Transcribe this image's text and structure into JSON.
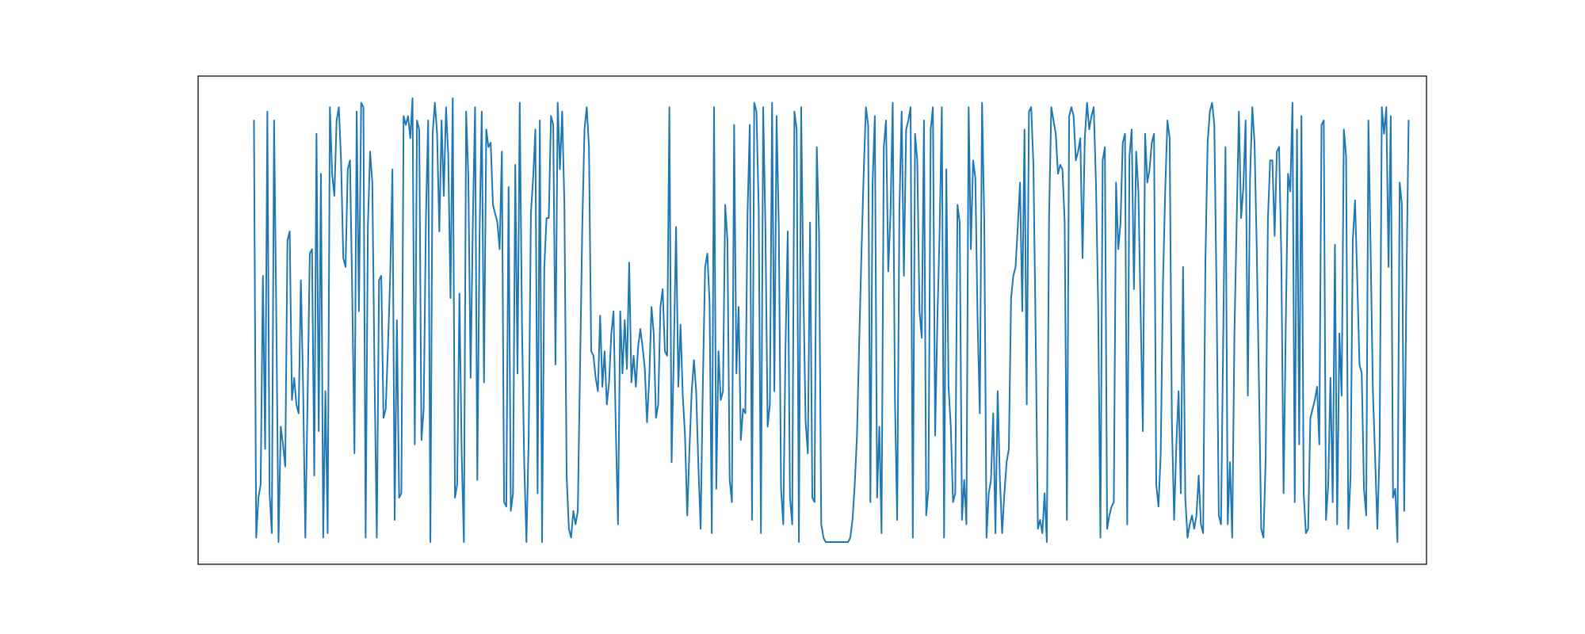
{
  "chart_data": {
    "type": "line",
    "title": "",
    "xlabel": "",
    "ylabel": "",
    "axes_visible": false,
    "grid": false,
    "legend": "none",
    "xlim": [
      -25,
      525
    ],
    "ylim": [
      -0.05,
      1.05
    ],
    "series": [
      {
        "color": "#1f77b4",
        "x_start": 0,
        "x_step": 1,
        "y": [
          0.95,
          0.01,
          0.1,
          0.13,
          0.6,
          0.21,
          0.97,
          0.11,
          0.02,
          0.95,
          0.51,
          0.0,
          0.26,
          0.22,
          0.17,
          0.68,
          0.7,
          0.32,
          0.37,
          0.31,
          0.29,
          0.59,
          0.35,
          0.01,
          0.32,
          0.65,
          0.66,
          0.15,
          0.92,
          0.25,
          0.83,
          0.01,
          0.34,
          0.02,
          0.98,
          0.83,
          0.78,
          0.95,
          0.98,
          0.86,
          0.64,
          0.62,
          0.84,
          0.86,
          0.56,
          0.2,
          0.97,
          0.52,
          0.99,
          0.98,
          0.01,
          0.71,
          0.88,
          0.81,
          0.37,
          0.01,
          0.59,
          0.6,
          0.28,
          0.3,
          0.44,
          0.6,
          0.84,
          0.05,
          0.5,
          0.1,
          0.11,
          0.96,
          0.94,
          0.96,
          0.91,
          1.0,
          0.22,
          0.95,
          0.93,
          0.23,
          0.3,
          0.73,
          0.95,
          0.0,
          0.92,
          0.99,
          0.92,
          0.7,
          0.95,
          0.78,
          0.98,
          0.87,
          0.55,
          1.0,
          0.1,
          0.13,
          0.56,
          0.2,
          0.0,
          0.97,
          0.82,
          0.37,
          0.72,
          0.98,
          0.14,
          0.69,
          0.97,
          0.36,
          0.93,
          0.89,
          0.9,
          0.76,
          0.74,
          0.72,
          0.66,
          0.88,
          0.09,
          0.08,
          0.8,
          0.07,
          0.11,
          0.85,
          0.38,
          0.99,
          0.49,
          0.18,
          0.0,
          0.23,
          0.74,
          0.82,
          0.93,
          0.11,
          0.95,
          0.0,
          0.62,
          0.73,
          0.73,
          0.96,
          0.94,
          0.4,
          0.99,
          0.84,
          0.97,
          0.76,
          0.15,
          0.03,
          0.01,
          0.07,
          0.04,
          0.07,
          0.39,
          0.71,
          0.93,
          0.98,
          0.89,
          0.43,
          0.42,
          0.37,
          0.34,
          0.51,
          0.35,
          0.43,
          0.31,
          0.36,
          0.47,
          0.52,
          0.26,
          0.04,
          0.52,
          0.38,
          0.5,
          0.39,
          0.63,
          0.36,
          0.42,
          0.35,
          0.44,
          0.48,
          0.44,
          0.39,
          0.27,
          0.37,
          0.53,
          0.47,
          0.28,
          0.31,
          0.53,
          0.57,
          0.43,
          0.42,
          0.98,
          0.18,
          0.43,
          0.71,
          0.35,
          0.49,
          0.33,
          0.24,
          0.06,
          0.21,
          0.34,
          0.41,
          0.34,
          0.17,
          0.03,
          0.36,
          0.62,
          0.65,
          0.54,
          0.02,
          0.98,
          0.12,
          0.43,
          0.32,
          0.34,
          0.76,
          0.68,
          0.14,
          0.09,
          0.94,
          0.38,
          0.53,
          0.23,
          0.3,
          0.29,
          0.74,
          0.94,
          0.05,
          0.99,
          0.97,
          0.75,
          0.02,
          0.98,
          0.71,
          0.26,
          0.31,
          0.99,
          0.34,
          0.96,
          0.71,
          0.12,
          0.04,
          0.44,
          0.7,
          0.1,
          0.04,
          0.97,
          0.93,
          0.0,
          0.98,
          0.57,
          0.27,
          0.2,
          0.72,
          0.1,
          0.09,
          0.89,
          0.7,
          0.04,
          0.01,
          0.0,
          0.0,
          0.0,
          0.0,
          0.0,
          0.0,
          0.0,
          0.0,
          0.0,
          0.0,
          0.0,
          0.01,
          0.05,
          0.13,
          0.24,
          0.45,
          0.65,
          0.83,
          0.98,
          0.94,
          0.09,
          0.81,
          0.96,
          0.1,
          0.26,
          0.02,
          0.89,
          0.95,
          0.61,
          0.74,
          0.99,
          0.32,
          0.05,
          0.75,
          0.97,
          0.6,
          0.93,
          0.95,
          0.98,
          0.01,
          0.92,
          0.86,
          0.52,
          0.46,
          0.95,
          0.06,
          0.12,
          0.93,
          0.98,
          0.24,
          0.5,
          0.7,
          0.98,
          0.01,
          0.84,
          0.35,
          0.26,
          0.09,
          0.11,
          0.76,
          0.72,
          0.05,
          0.14,
          0.04,
          0.98,
          0.66,
          0.86,
          0.82,
          0.5,
          0.29,
          0.99,
          0.72,
          0.01,
          0.11,
          0.14,
          0.29,
          0.02,
          0.34,
          0.14,
          0.02,
          0.11,
          0.18,
          0.21,
          0.55,
          0.6,
          0.62,
          0.71,
          0.81,
          0.52,
          0.93,
          0.31,
          0.97,
          0.98,
          0.85,
          0.47,
          0.03,
          0.05,
          0.02,
          0.11,
          0.0,
          0.73,
          0.98,
          0.95,
          0.92,
          0.83,
          0.85,
          0.84,
          0.72,
          0.05,
          0.96,
          0.98,
          0.96,
          0.86,
          0.88,
          0.91,
          0.64,
          0.91,
          0.99,
          0.93,
          0.96,
          0.98,
          0.81,
          0.53,
          0.01,
          0.86,
          0.89,
          0.03,
          0.06,
          0.08,
          0.09,
          0.81,
          0.66,
          0.72,
          0.9,
          0.92,
          0.04,
          0.87,
          0.93,
          0.57,
          0.88,
          0.79,
          0.52,
          0.25,
          0.92,
          0.81,
          0.84,
          0.9,
          0.92,
          0.13,
          0.08,
          0.2,
          0.58,
          0.79,
          0.95,
          0.91,
          0.27,
          0.05,
          0.22,
          0.34,
          0.11,
          0.62,
          0.1,
          0.01,
          0.04,
          0.06,
          0.03,
          0.06,
          0.15,
          0.04,
          0.02,
          0.63,
          0.9,
          0.97,
          0.99,
          0.94,
          0.56,
          0.06,
          0.04,
          0.47,
          0.89,
          0.04,
          0.18,
          0.01,
          0.47,
          0.72,
          0.97,
          0.73,
          0.8,
          0.95,
          0.33,
          0.82,
          0.98,
          0.9,
          0.66,
          0.35,
          0.03,
          0.01,
          0.19,
          0.73,
          0.86,
          0.86,
          0.69,
          0.88,
          0.89,
          0.64,
          0.11,
          0.49,
          0.83,
          0.79,
          0.99,
          0.09,
          0.93,
          0.22,
          0.96,
          0.11,
          0.02,
          0.03,
          0.28,
          0.3,
          0.32,
          0.35,
          0.22,
          0.94,
          0.95,
          0.05,
          0.13,
          0.37,
          0.09,
          0.67,
          0.04,
          0.47,
          0.33,
          0.93,
          0.87,
          0.03,
          0.15,
          0.68,
          0.77,
          0.59,
          0.4,
          0.38,
          0.12,
          0.06,
          0.95,
          0.65,
          0.34,
          0.19,
          0.03,
          0.21,
          0.98,
          0.92,
          0.98,
          0.62,
          0.96,
          0.1,
          0.12,
          0.0,
          0.81,
          0.76,
          0.07,
          0.58,
          0.95
        ]
      }
    ]
  }
}
